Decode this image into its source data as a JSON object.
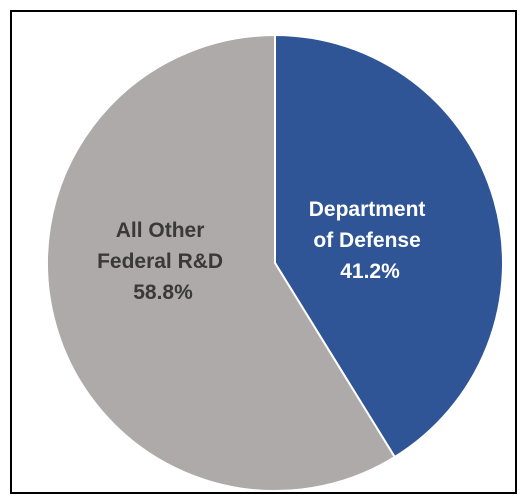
{
  "chart_data": {
    "type": "pie",
    "title": "",
    "slices": [
      {
        "label_lines": [
          "Department",
          "of Defense"
        ],
        "value_label": "41.2%",
        "value": 41.2,
        "color": "#2F5597",
        "text_color": "#FFFFFF"
      },
      {
        "label_lines": [
          "All Other",
          "Federal R&D"
        ],
        "value_label": "58.8%",
        "value": 58.8,
        "color": "#AEAAAA",
        "text_color": "#3B3838"
      }
    ],
    "start_angle_deg": 0,
    "direction": "clockwise",
    "legend": "none"
  }
}
